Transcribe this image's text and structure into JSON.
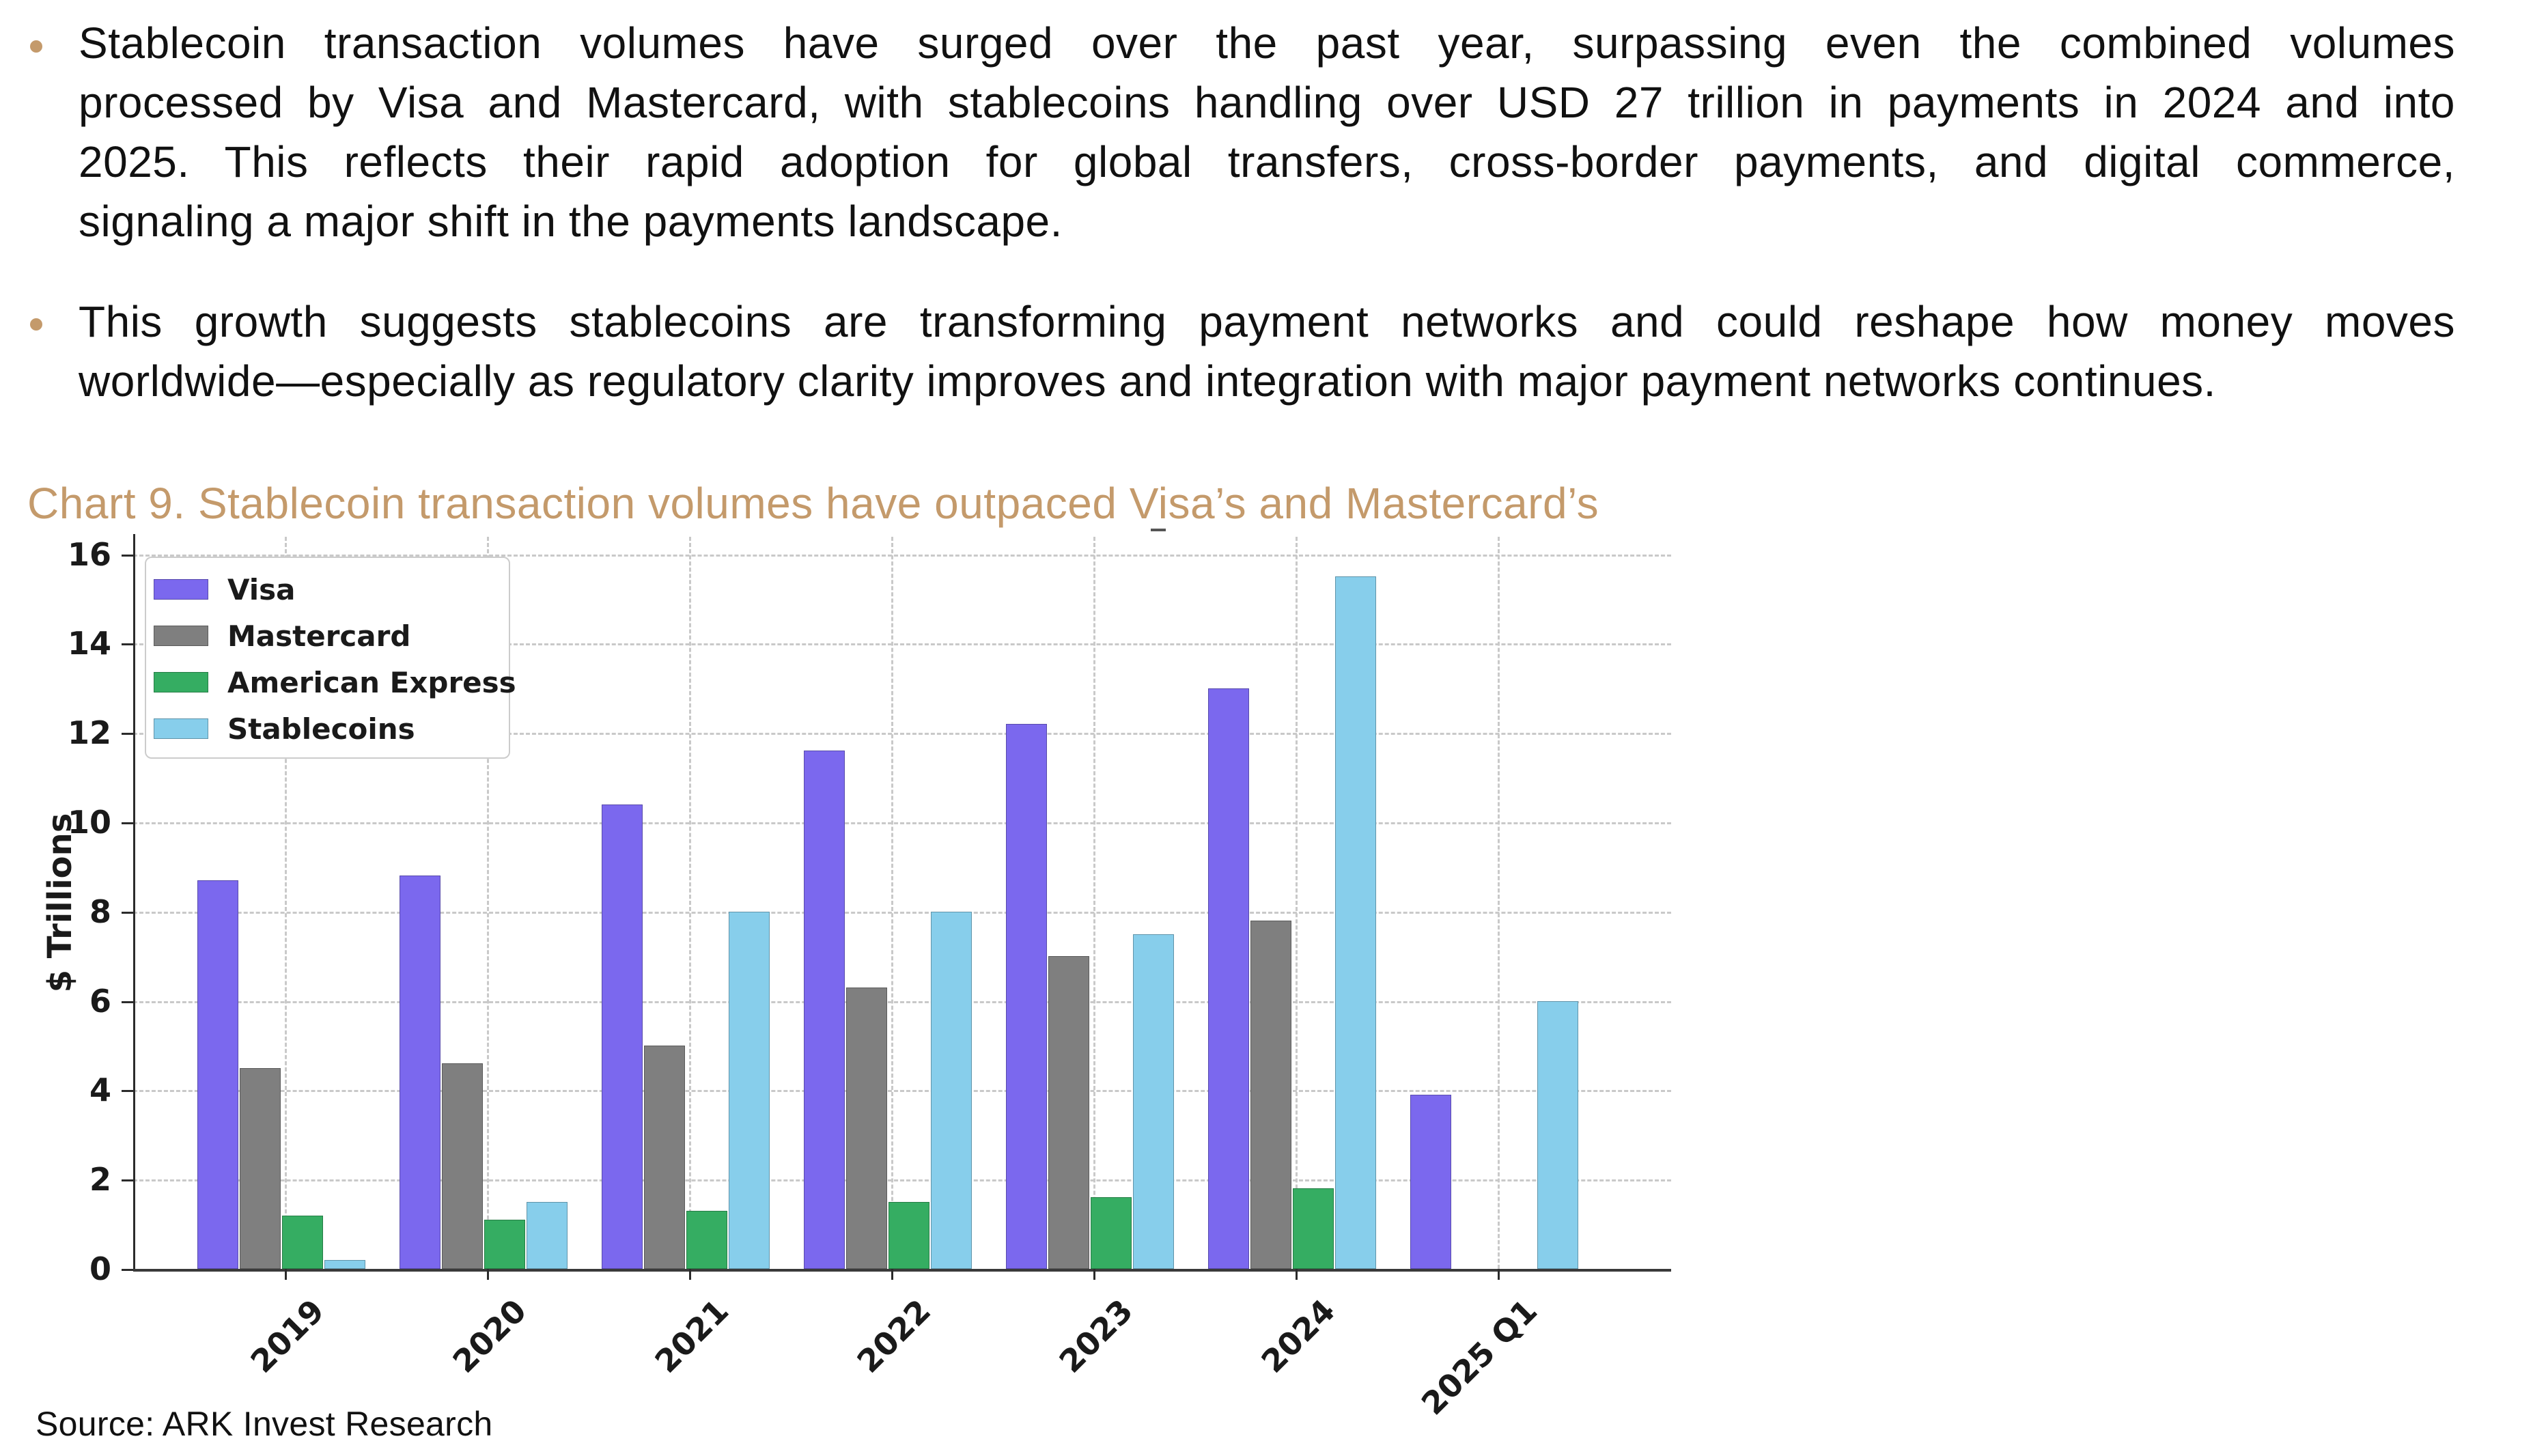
{
  "accent_color": "#C49A6B",
  "bullets": [
    {
      "lines": [
        "Stablecoin transaction volumes have surged over the past year, surpassing even the combined volumes",
        "processed by Visa and Mastercard, with stablecoins handling over USD 27 trillion in payments in 2024 and into",
        "2025. This reflects their rapid adoption for global transfers, cross-border payments, and digital commerce,",
        "signaling a major shift in the payments landscape."
      ]
    },
    {
      "lines": [
        "This growth suggests stablecoins are transforming payment networks and could reshape how money moves",
        "worldwide—especially as regulatory clarity improves and integration with major payment networks continues."
      ]
    }
  ],
  "chart": {
    "title": "Chart 9. Stablecoin transaction volumes have outpaced Visa’s and Mastercard’s",
    "title_color": "#C49A6B",
    "source": "Source: ARK Invest Research"
  },
  "chart_data": {
    "type": "bar",
    "title": "Chart 9. Stablecoin transaction volumes have outpaced Visa’s and Mastercard’s",
    "categories": [
      "2019",
      "2020",
      "2021",
      "2022",
      "2023",
      "2024",
      "2025 Q1"
    ],
    "series": [
      {
        "name": "Visa",
        "color": "#7B68EE",
        "values": [
          8.7,
          8.8,
          10.4,
          11.6,
          12.2,
          13.0,
          3.9
        ]
      },
      {
        "name": "Mastercard",
        "color": "#7F7F7F",
        "values": [
          4.5,
          4.6,
          5.0,
          6.3,
          7.0,
          7.8,
          null
        ]
      },
      {
        "name": "American Express",
        "color": "#35AD62",
        "values": [
          1.2,
          1.1,
          1.3,
          1.5,
          1.6,
          1.8,
          null
        ]
      },
      {
        "name": "Stablecoins",
        "color": "#87CEEB",
        "values": [
          0.2,
          1.5,
          8.0,
          8.0,
          7.5,
          15.5,
          6.0
        ]
      }
    ],
    "xlabel": "",
    "ylabel": "$ Trillions",
    "ylim": [
      0,
      16.4
    ],
    "yticks": [
      0,
      2,
      4,
      6,
      8,
      10,
      12,
      14,
      16
    ],
    "grid": "dashed-both-axes",
    "legend_position": "upper-left"
  }
}
